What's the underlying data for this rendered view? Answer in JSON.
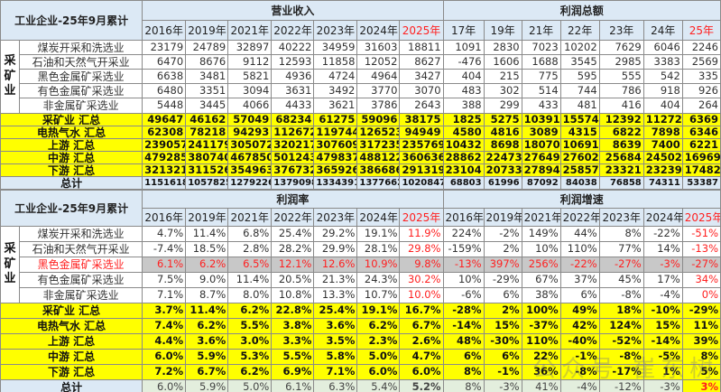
{
  "title": "工业企业-25年9月累计",
  "mining_label": "采矿业",
  "watermark": "公众号 崔东树",
  "top": {
    "group1": "营业收入",
    "group2": "利润总额",
    "years1": [
      "2016年",
      "2019年",
      "2021年",
      "2022年",
      "2023年",
      "2024年",
      "2025年"
    ],
    "years2": [
      "17年",
      "19年",
      "21年",
      "22年",
      "23年",
      "24年",
      "25年"
    ],
    "rows": [
      {
        "name": "煤炭开采和洗选业",
        "type": "w",
        "rev": [
          "23179",
          "24789",
          "32897",
          "40222",
          "34959",
          "31603",
          "18811"
        ],
        "profit": [
          "1091",
          "2830",
          "7023",
          "10202",
          "7629",
          "6046",
          "2246"
        ]
      },
      {
        "name": "石油和天然气开采业",
        "type": "w",
        "rev": [
          "6470",
          "8676",
          "9112",
          "12593",
          "11858",
          "12052",
          "8627"
        ],
        "profit": [
          "-476",
          "1606",
          "1688",
          "3545",
          "2985",
          "3383",
          "2569"
        ]
      },
      {
        "name": "黑色金属矿采选业",
        "type": "w",
        "rev": [
          "6638",
          "3481",
          "5821",
          "4936",
          "4724",
          "4964",
          "3427"
        ],
        "profit": [
          "404",
          "215",
          "775",
          "595",
          "555",
          "542",
          "335"
        ]
      },
      {
        "name": "有色金属矿采选业",
        "type": "w",
        "rev": [
          "6480",
          "3351",
          "3094",
          "3631",
          "3492",
          "3770",
          "3070"
        ],
        "profit": [
          "483",
          "302",
          "514",
          "744",
          "786",
          "918",
          "926"
        ]
      },
      {
        "name": "非金属矿采选业",
        "type": "w",
        "rev": [
          "5448",
          "3445",
          "4066",
          "4433",
          "3621",
          "3786",
          "2643"
        ],
        "profit": [
          "388",
          "299",
          "433",
          "481",
          "416",
          "404",
          "264"
        ]
      },
      {
        "name": "采矿业 汇总",
        "type": "y",
        "rev": [
          "49647",
          "46162",
          "57049",
          "68234",
          "61275",
          "59096",
          "38175"
        ],
        "profit": [
          "1825",
          "5275",
          "10391",
          "15574",
          "12392",
          "11272",
          "6369"
        ]
      },
      {
        "name": "电热气水 汇总",
        "type": "y",
        "rev": [
          "62308",
          "78218",
          "94293",
          "112672",
          "119744",
          "126523",
          "94949"
        ],
        "profit": [
          "4580",
          "4816",
          "3089",
          "4315",
          "6822",
          "7898",
          "6346"
        ]
      },
      {
        "name": "上游 汇总",
        "type": "y",
        "rev": [
          "239057",
          "241179",
          "305072",
          "320217",
          "307609",
          "317235",
          "235769"
        ],
        "profit": [
          "10432",
          "8698",
          "18070",
          "10691",
          "8639",
          "7400",
          "6221"
        ]
      },
      {
        "name": "中游 汇总",
        "type": "y",
        "rev": [
          "479285",
          "380740",
          "467850",
          "501243",
          "479837",
          "488122",
          "360636"
        ],
        "profit": [
          "28862",
          "22473",
          "27649",
          "27602",
          "25684",
          "24502",
          "16969"
        ]
      },
      {
        "name": "下游 汇总",
        "type": "y",
        "rev": [
          "321321",
          "311526",
          "354963",
          "376732",
          "365926",
          "386686",
          "291319"
        ],
        "profit": [
          "23104",
          "20733",
          "27894",
          "25857",
          "23321",
          "23239",
          "17482"
        ]
      },
      {
        "name": "总计",
        "type": "t",
        "rev": [
          "1151618",
          "1057825",
          "1279226",
          "1379098",
          "1334391",
          "1377662",
          "1020847"
        ],
        "profit": [
          "68803",
          "61996",
          "87092",
          "84038",
          "76858",
          "74311",
          "53387"
        ]
      }
    ]
  },
  "bottom": {
    "group1": "利润率",
    "group2": "利润增速",
    "years1": [
      "2016年",
      "2019年",
      "2021年",
      "2022年",
      "2023年",
      "2024年",
      "2025年"
    ],
    "years2": [
      "2016年",
      "2019年",
      "2021年",
      "2022年",
      "2023年",
      "2024年",
      "2025年"
    ],
    "rows": [
      {
        "name": "煤炭开采和洗选业",
        "type": "w",
        "rate": [
          "4.7%",
          "11.4%",
          "6.8%",
          "25.4%",
          "29.2%",
          "19.1%",
          "11.9%"
        ],
        "growth": [
          "224%",
          "-2%",
          "149%",
          "44%",
          "8%",
          "-22%",
          "-51%"
        ]
      },
      {
        "name": "石油和天然气开采业",
        "type": "w",
        "rate": [
          "-7.4%",
          "18.5%",
          "2.8%",
          "28.2%",
          "29.9%",
          "28.1%",
          "29.8%"
        ],
        "growth": [
          "-159%",
          "2%",
          "10%",
          "110%",
          "77%",
          "14%",
          "-13%"
        ]
      },
      {
        "name": "黑色金属矿采选业",
        "type": "rr",
        "rate": [
          "6.1%",
          "6.2%",
          "6.5%",
          "12.1%",
          "12.6%",
          "10.9%",
          "9.8%"
        ],
        "growth": [
          "-13%",
          "397%",
          "256%",
          "-22%",
          "-27%",
          "-3%",
          "-27%"
        ]
      },
      {
        "name": "有色金属矿采选业",
        "type": "w",
        "rate": [
          "7.5%",
          "9.0%",
          "11.4%",
          "20.5%",
          "21.3%",
          "24.3%",
          "30.2%"
        ],
        "growth": [
          "10%",
          "-29%",
          "67%",
          "37%",
          "45%",
          "17%",
          "34%"
        ]
      },
      {
        "name": "非金属矿采选业",
        "type": "w",
        "rate": [
          "7.1%",
          "8.7%",
          "8.0%",
          "10.8%",
          "13.3%",
          "10.7%",
          "10.0%"
        ],
        "growth": [
          "-6%",
          "6%",
          "38%",
          "6%",
          "-8%",
          "-4%",
          "0%"
        ]
      },
      {
        "name": "采矿业 汇总",
        "type": "y",
        "rate": [
          "3.7%",
          "11.4%",
          "6.2%",
          "22.8%",
          "25.4%",
          "19.1%",
          "16.7%"
        ],
        "growth": [
          "-28%",
          "2%",
          "100%",
          "49%",
          "18%",
          "-10%",
          "-29%"
        ]
      },
      {
        "name": "电热气水 汇总",
        "type": "y",
        "rate": [
          "7.4%",
          "6.2%",
          "5.5%",
          "3.8%",
          "3.6%",
          "6.2%",
          "6.7%"
        ],
        "growth": [
          "-14%",
          "15%",
          "-37%",
          "42%",
          "124%",
          "15%",
          "11%"
        ]
      },
      {
        "name": "上游 汇总",
        "type": "y",
        "rate": [
          "4.4%",
          "3.6%",
          "3.0%",
          "3.3%",
          "3.5%",
          "2.3%",
          "2.6%"
        ],
        "growth": [
          "48%",
          "-30%",
          "110%",
          "-40%",
          "-52%",
          "-14%",
          "39%"
        ]
      },
      {
        "name": "中游 汇总",
        "type": "y",
        "rate": [
          "6.0%",
          "5.9%",
          "5.3%",
          "5.5%",
          "5.8%",
          "5.0%",
          "4.7%"
        ],
        "growth": [
          "6%",
          "6%",
          "22%",
          "-1%",
          "-8%",
          "-5%",
          "8%"
        ]
      },
      {
        "name": "下游 汇总",
        "type": "y",
        "rate": [
          "7.2%",
          "6.7%",
          "6.2%",
          "6.9%",
          "7.1%",
          "6.0%",
          "6.0%"
        ],
        "growth": [
          "8%",
          "-1%",
          "36%",
          "-8%",
          "-17%",
          "1%",
          "5%"
        ]
      },
      {
        "name": "总计",
        "type": "tb",
        "rate": [
          "6.0%",
          "5.9%",
          "5.0%",
          "6.1%",
          "6.3%",
          "5.4%",
          "5.2%"
        ],
        "growth": [
          "8%",
          "-3%",
          "41%",
          "-4%",
          "-12%",
          "-3%",
          "3%"
        ]
      }
    ]
  }
}
